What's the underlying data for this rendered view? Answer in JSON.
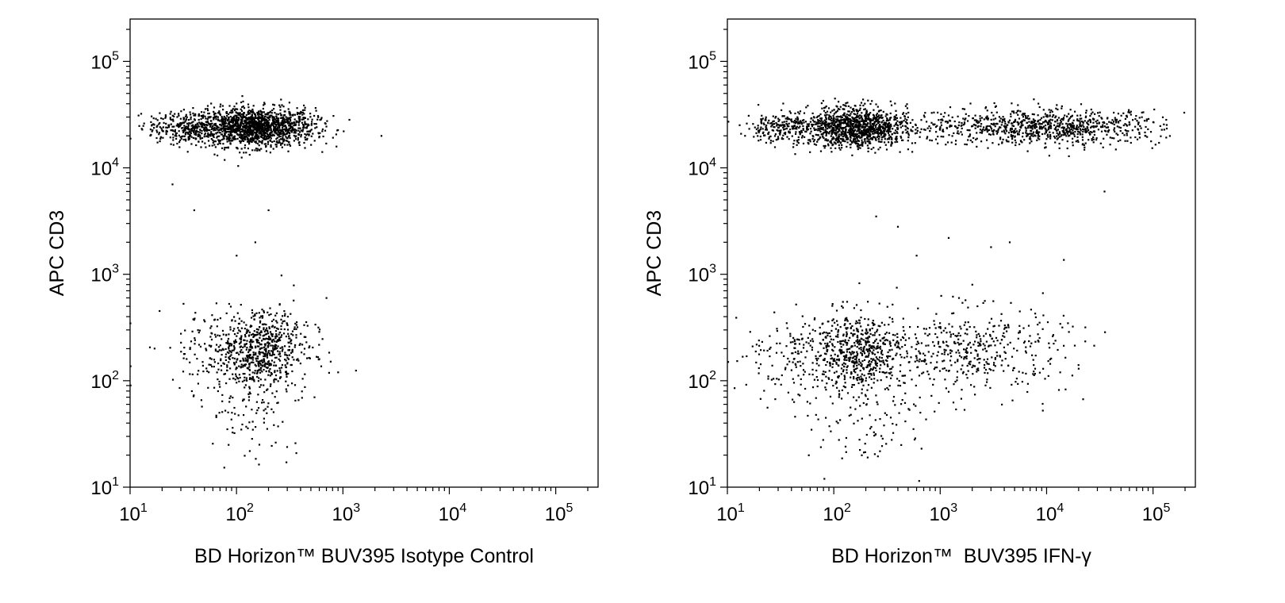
{
  "chart_data": [
    {
      "type": "scatter",
      "panel": "left",
      "xlabel": "BD Horizon™ BUV395 Isotype Control",
      "ylabel": "APC CD3",
      "xscale": "log",
      "yscale": "log",
      "xlim": [
        10,
        250000
      ],
      "ylim": [
        10,
        250000
      ],
      "x_tick_labels": [
        {
          "base": "10",
          "exp": "1",
          "value": 10
        },
        {
          "base": "10",
          "exp": "2",
          "value": 100
        },
        {
          "base": "10",
          "exp": "3",
          "value": 1000
        },
        {
          "base": "10",
          "exp": "4",
          "value": 10000
        },
        {
          "base": "10",
          "exp": "5",
          "value": 100000
        }
      ],
      "y_tick_labels": [
        {
          "base": "10",
          "exp": "1",
          "value": 10
        },
        {
          "base": "10",
          "exp": "2",
          "value": 100
        },
        {
          "base": "10",
          "exp": "3",
          "value": 1000
        },
        {
          "base": "10",
          "exp": "4",
          "value": 10000
        },
        {
          "base": "10",
          "exp": "5",
          "value": 100000
        }
      ],
      "populations": [
        {
          "x_center": 150,
          "y_center": 24000,
          "x_spread_decades": 0.28,
          "y_spread_decades": 0.09,
          "count": 1500
        },
        {
          "x_center": 35,
          "y_center": 24000,
          "x_spread_decades": 0.18,
          "y_spread_decades": 0.07,
          "count": 300
        },
        {
          "x_center": 170,
          "y_center": 200,
          "x_spread_decades": 0.22,
          "y_spread_decades": 0.18,
          "count": 650
        },
        {
          "x_center": 60,
          "y_center": 200,
          "x_spread_decades": 0.3,
          "y_spread_decades": 0.2,
          "count": 120
        },
        {
          "x_center": 150,
          "y_center": 60,
          "x_spread_decades": 0.25,
          "y_spread_decades": 0.25,
          "count": 120
        }
      ],
      "outliers": [
        [
          2300,
          20000
        ],
        [
          900,
          120
        ],
        [
          600,
          160
        ],
        [
          700,
          600
        ],
        [
          200,
          4000
        ],
        [
          150,
          2000
        ],
        [
          100,
          1500
        ],
        [
          40,
          4000
        ],
        [
          25,
          7000
        ]
      ],
      "grid": false,
      "legend": "none"
    },
    {
      "type": "scatter",
      "panel": "right",
      "xlabel": "BD Horizon™  BUV395 IFN-γ",
      "ylabel": "APC CD3",
      "xscale": "log",
      "yscale": "log",
      "xlim": [
        10,
        250000
      ],
      "ylim": [
        10,
        250000
      ],
      "x_tick_labels": [
        {
          "base": "10",
          "exp": "1",
          "value": 10
        },
        {
          "base": "10",
          "exp": "2",
          "value": 100
        },
        {
          "base": "10",
          "exp": "3",
          "value": 1000
        },
        {
          "base": "10",
          "exp": "4",
          "value": 10000
        },
        {
          "base": "10",
          "exp": "5",
          "value": 100000
        }
      ],
      "y_tick_labels": [
        {
          "base": "10",
          "exp": "1",
          "value": 10
        },
        {
          "base": "10",
          "exp": "2",
          "value": 100
        },
        {
          "base": "10",
          "exp": "3",
          "value": 1000
        },
        {
          "base": "10",
          "exp": "4",
          "value": 10000
        },
        {
          "base": "10",
          "exp": "5",
          "value": 100000
        }
      ],
      "populations": [
        {
          "x_center": 160,
          "y_center": 24000,
          "x_spread_decades": 0.25,
          "y_spread_decades": 0.09,
          "count": 1200
        },
        {
          "x_center": 30,
          "y_center": 24000,
          "x_spread_decades": 0.15,
          "y_spread_decades": 0.07,
          "count": 200
        },
        {
          "x_center": 15000,
          "y_center": 24000,
          "x_spread_decades": 0.45,
          "y_spread_decades": 0.08,
          "count": 650
        },
        {
          "x_center": 2500,
          "y_center": 24000,
          "x_spread_decades": 0.4,
          "y_spread_decades": 0.08,
          "count": 250
        },
        {
          "x_center": 170,
          "y_center": 190,
          "x_spread_decades": 0.22,
          "y_spread_decades": 0.18,
          "count": 550
        },
        {
          "x_center": 2000,
          "y_center": 190,
          "x_spread_decades": 0.45,
          "y_spread_decades": 0.2,
          "count": 450
        },
        {
          "x_center": 40,
          "y_center": 180,
          "x_spread_decades": 0.25,
          "y_spread_decades": 0.2,
          "count": 150
        },
        {
          "x_center": 200,
          "y_center": 50,
          "x_spread_decades": 0.3,
          "y_spread_decades": 0.25,
          "count": 120
        }
      ],
      "outliers": [
        [
          3000,
          1800
        ],
        [
          4500,
          2000
        ],
        [
          2000,
          800
        ],
        [
          1500,
          600
        ],
        [
          250,
          3500
        ],
        [
          400,
          2800
        ],
        [
          1200,
          2200
        ],
        [
          600,
          1500
        ],
        [
          35000,
          6000
        ],
        [
          20000,
          130
        ]
      ],
      "grid": false,
      "legend": "none"
    }
  ]
}
